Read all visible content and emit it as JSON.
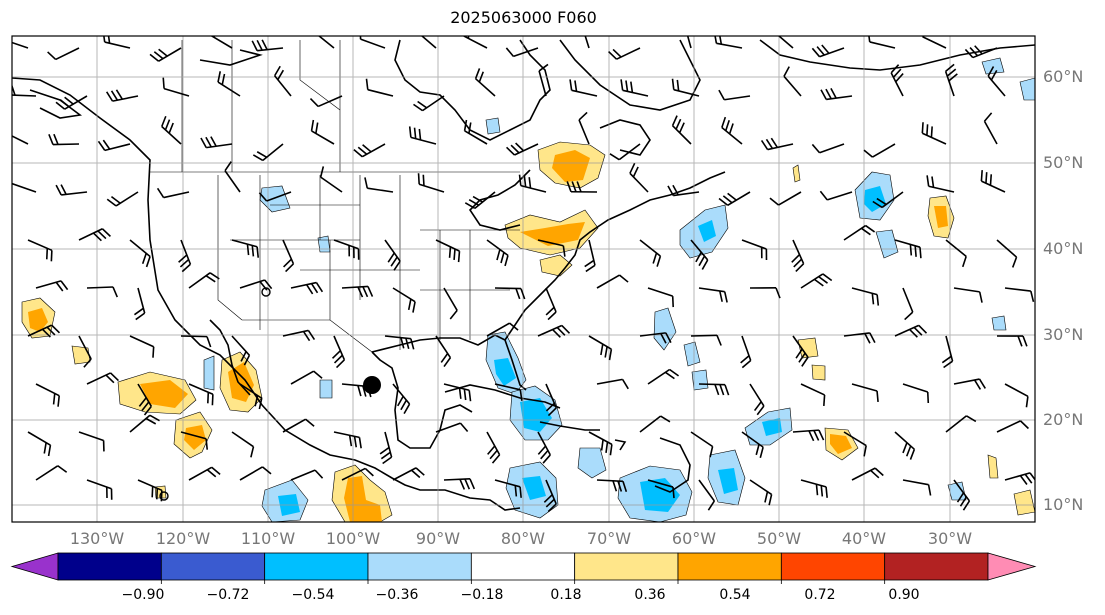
{
  "title": "2025063000 F060",
  "lat_labels": [
    "60°N",
    "50°N",
    "40°N",
    "30°N",
    "20°N",
    "10°N"
  ],
  "lon_labels": [
    "130°W",
    "120°W",
    "110°W",
    "100°W",
    "90°W",
    "80°W",
    "70°W",
    "60°W",
    "50°W",
    "40°W",
    "30°W"
  ],
  "colorbar": {
    "ticks": [
      "−0.90",
      "−0.72",
      "−0.54",
      "−0.36",
      "−0.18",
      "0.18",
      "0.36",
      "0.54",
      "0.72",
      "0.90"
    ],
    "colors": [
      "#9932cc",
      "#00008b",
      "#3a5bd0",
      "#00bfff",
      "#aadcfb",
      "#ffffff",
      "#ffe68a",
      "#ffa500",
      "#ff4500",
      "#b22222",
      "#ff8cb4"
    ]
  },
  "map": {
    "extent_lon": [
      -140,
      -20
    ],
    "extent_lat": [
      8,
      65
    ],
    "marker": {
      "name": "station-marker",
      "lon": -100.2,
      "lat": 24.0
    }
  }
}
